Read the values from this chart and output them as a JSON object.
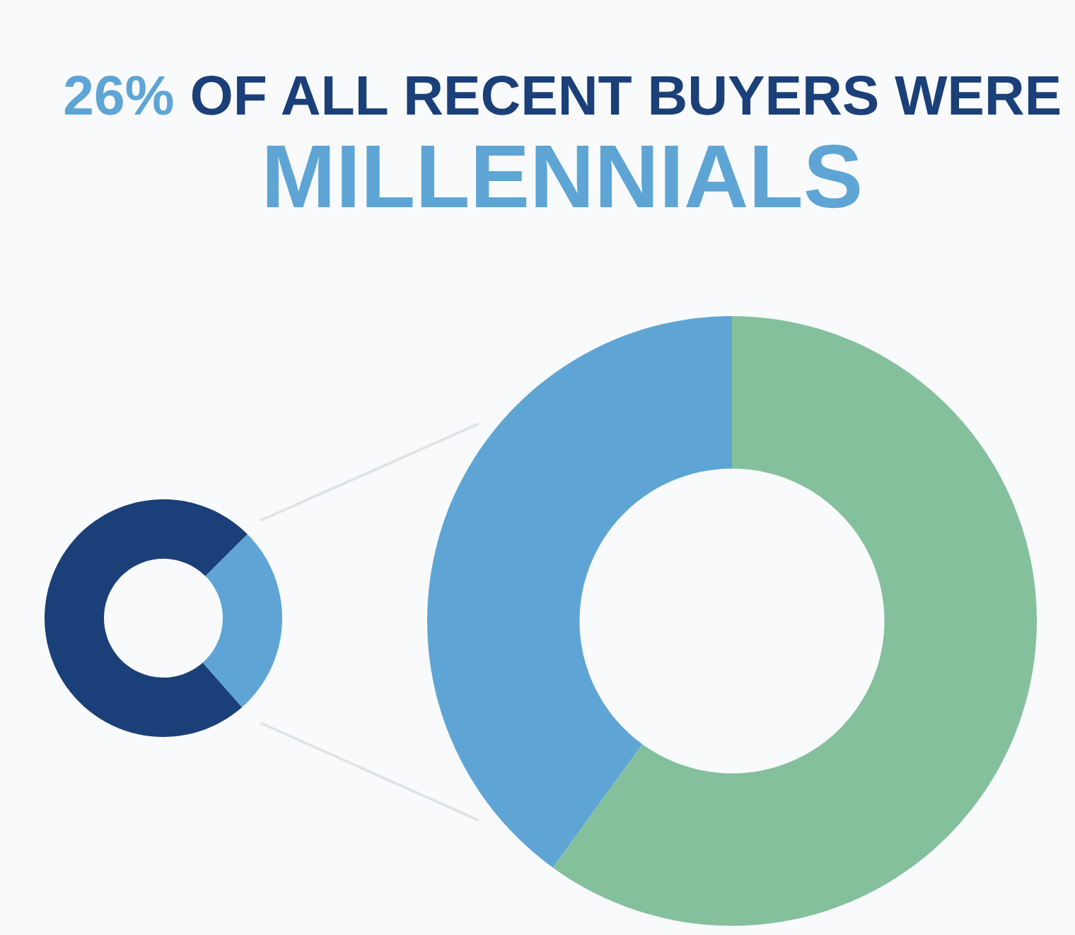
{
  "chart_data": [
    {
      "type": "donut",
      "title": "26% OF ALL RECENT BUYERS WERE\nMILLENNIALS",
      "categories": [
        null,
        null
      ],
      "values": [
        26,
        74
      ],
      "colors": [
        "#5ea5d5",
        "#1b3f78"
      ]
    },
    {
      "type": "donut",
      "categories": [
        null,
        null
      ],
      "values": [
        40,
        60
      ],
      "colors": [
        "#5ea5d5",
        "#84c09c"
      ]
    }
  ]
}
